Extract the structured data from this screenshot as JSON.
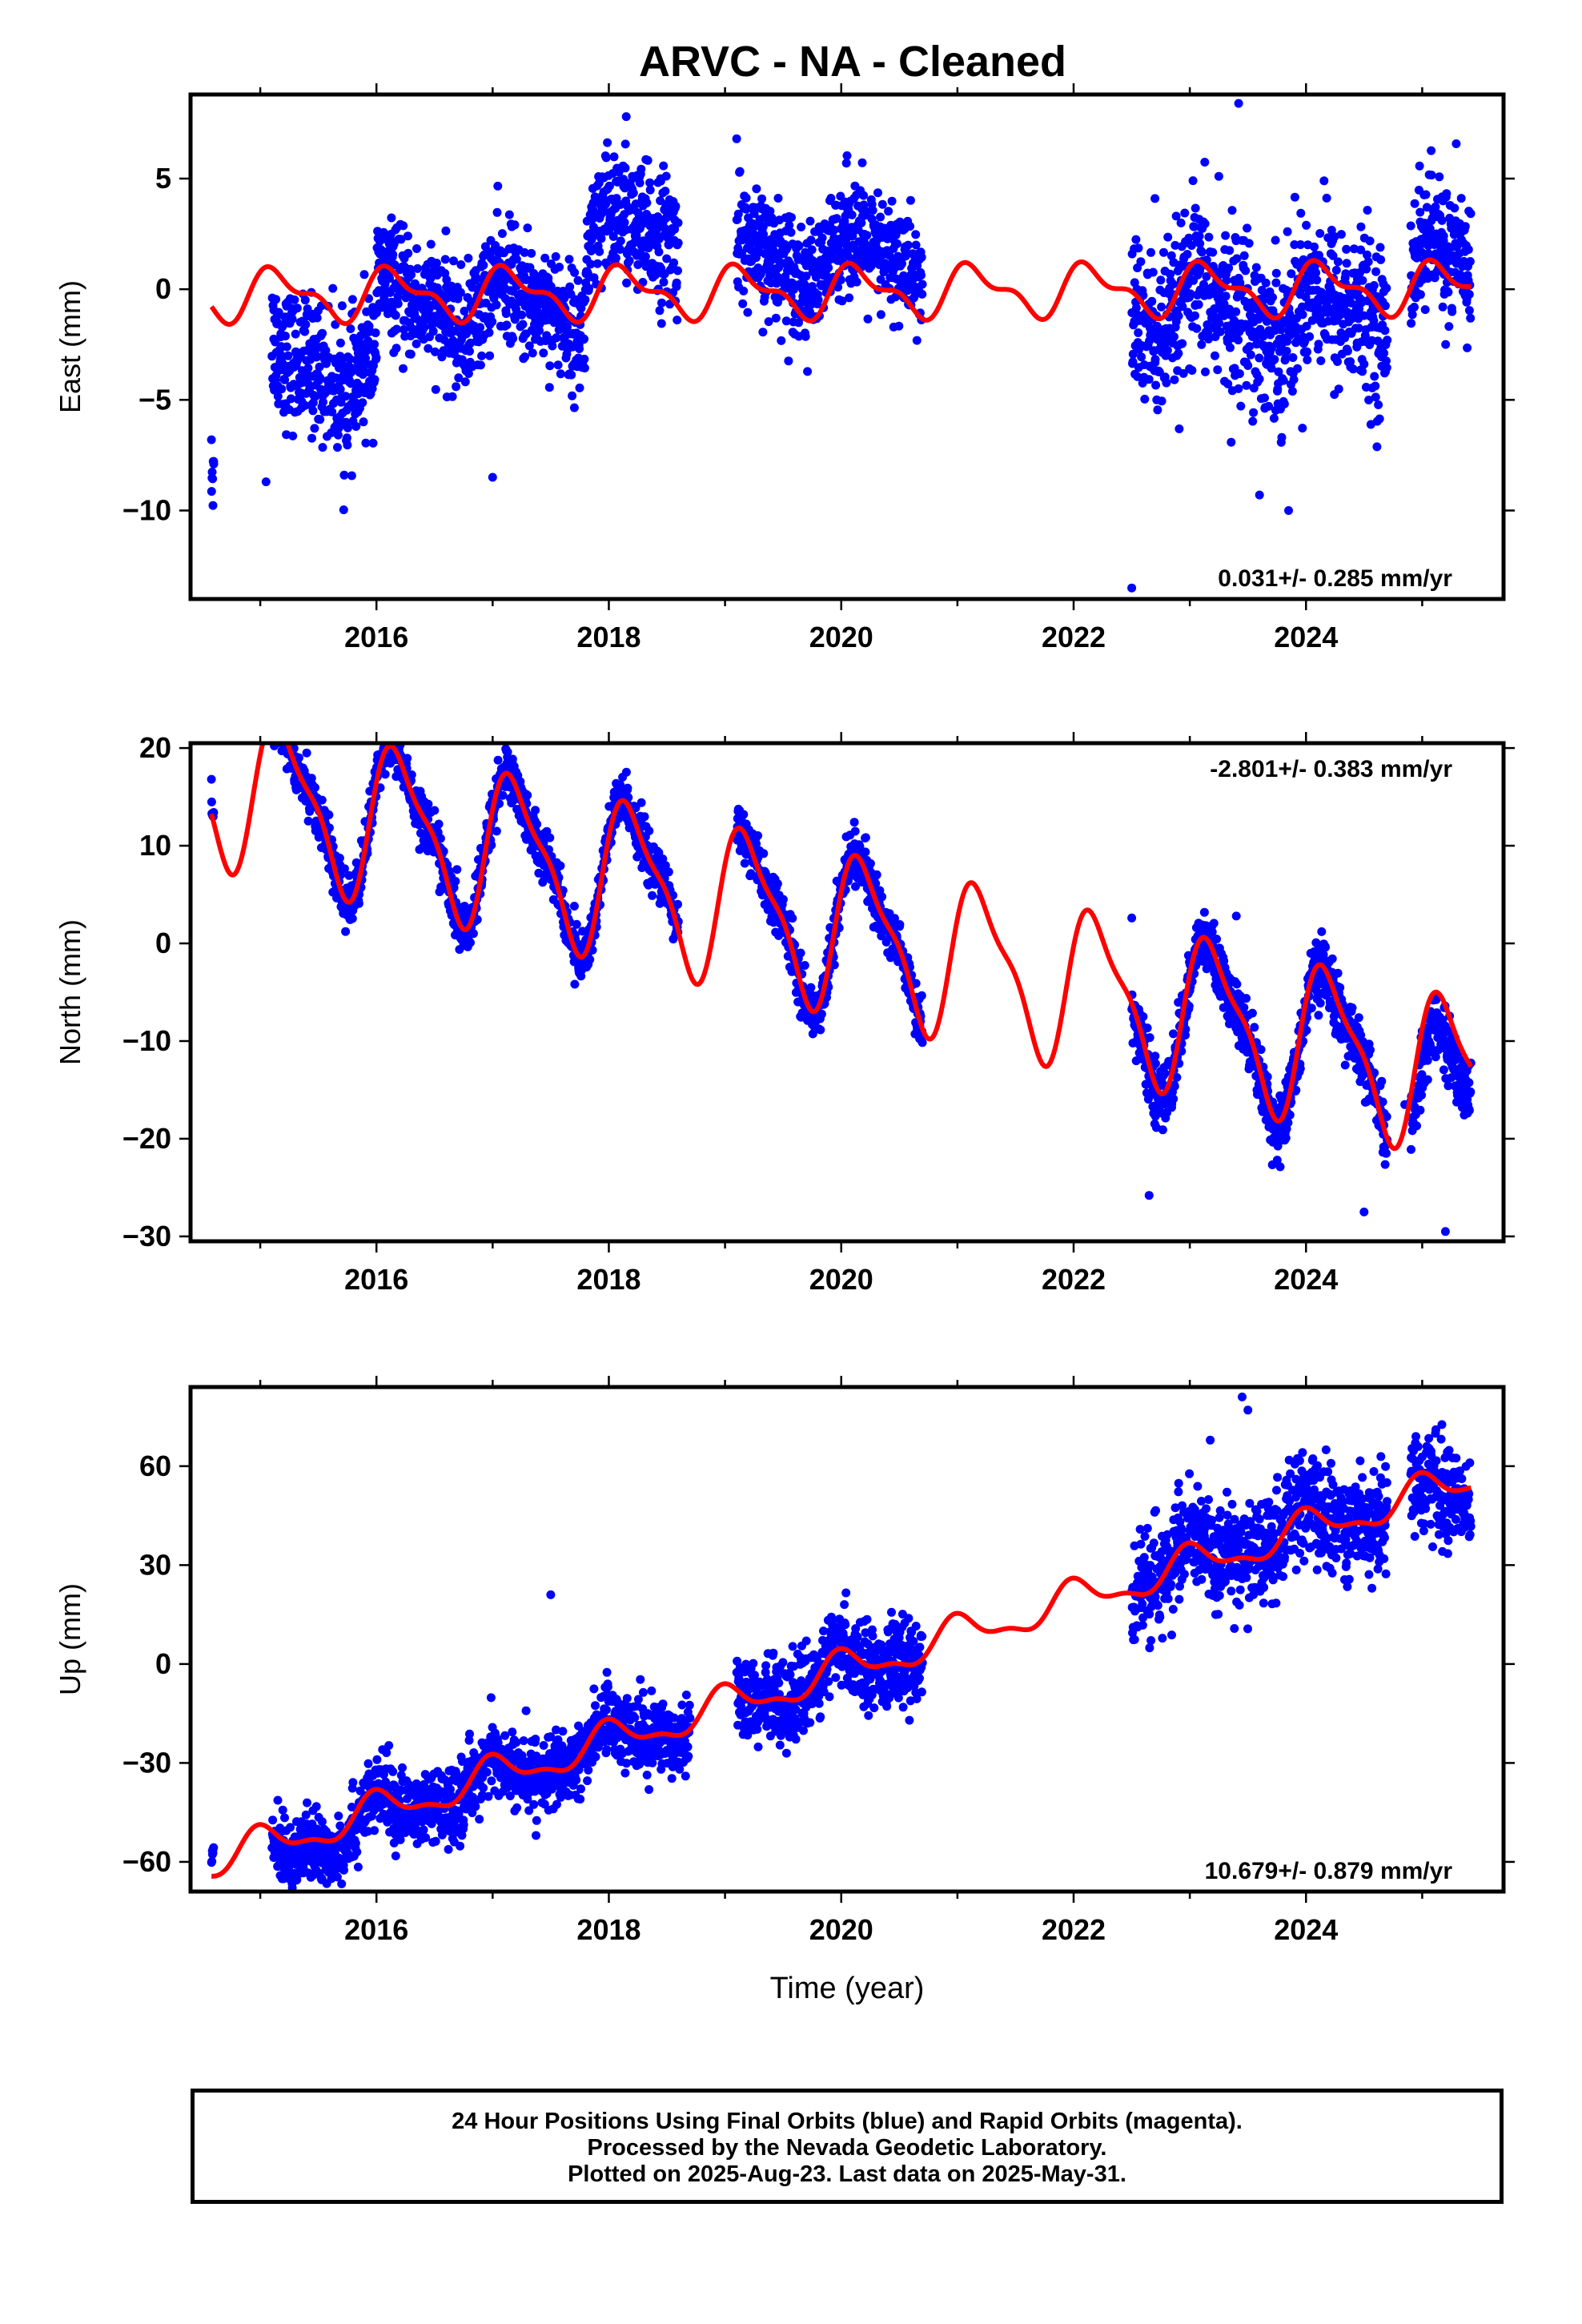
{
  "title": "ARVC  - NA - Cleaned",
  "xlabel": "Time (year)",
  "colors": {
    "data": "#0000ff",
    "model": "#ff0000",
    "axis": "#000000"
  },
  "caption": {
    "line1": "24 Hour Positions Using Final Orbits (blue) and Rapid Orbits (magenta).",
    "line2": "Processed by the Nevada Geodetic Laboratory.",
    "line3": "Plotted on 2025-Aug-23. Last data on 2025-May-31."
  },
  "chart_data": [
    {
      "type": "scatter",
      "name": "east",
      "ylabel": "East (mm)",
      "rate_label": "0.031+/- 0.285 mm/yr",
      "rate_position": "bottom-right",
      "xlim": [
        2014.4,
        2025.7
      ],
      "ylim": [
        -14,
        8.8
      ],
      "xticks": [
        2016,
        2018,
        2020,
        2022,
        2024
      ],
      "yticks": [
        -10,
        -5,
        0,
        5
      ],
      "grid": false,
      "model": {
        "offset": -0.1,
        "rate": 0.031,
        "amp_annual": 1.0,
        "phase_annual": 0.6,
        "amp_semi": 0.5,
        "phase_semi": 1.3
      },
      "data_segments": [
        {
          "start": 2014.58,
          "end": 2014.6,
          "scatter": 1.0,
          "bias": -7.3
        },
        {
          "start": 2015.1,
          "end": 2016.0,
          "scatter": 1.5,
          "bias": -3.2
        },
        {
          "start": 2016.0,
          "end": 2017.8,
          "scatter": 1.3,
          "bias": -0.5
        },
        {
          "start": 2017.8,
          "end": 2018.6,
          "scatter": 1.5,
          "bias": 2.5
        },
        {
          "start": 2019.1,
          "end": 2020.7,
          "scatter": 1.3,
          "bias": 1.5
        },
        {
          "start": 2022.5,
          "end": 2024.7,
          "scatter": 1.8,
          "bias": -1.0
        },
        {
          "start": 2024.9,
          "end": 2025.42,
          "scatter": 1.5,
          "bias": 1.0
        }
      ],
      "outliers": [
        [
          2014.58,
          -6.8
        ],
        [
          2014.6,
          -7.9
        ],
        [
          2015.05,
          -8.7
        ],
        [
          2017.0,
          -8.5
        ],
        [
          2018.15,
          7.8
        ],
        [
          2019.1,
          6.8
        ],
        [
          2022.5,
          -13.5
        ],
        [
          2023.42,
          8.4
        ],
        [
          2023.25,
          5.1
        ],
        [
          2023.6,
          -9.3
        ],
        [
          2023.85,
          -10.0
        ],
        [
          2022.7,
          4.1
        ]
      ]
    },
    {
      "type": "scatter",
      "name": "north",
      "ylabel": "North (mm)",
      "rate_label": "-2.801+/- 0.383 mm/yr",
      "rate_position": "top-right",
      "xlim": [
        2014.4,
        2025.7
      ],
      "ylim": [
        -30.5,
        20.5
      ],
      "xticks": [
        2016,
        2018,
        2020,
        2022,
        2024
      ],
      "yticks": [
        -30,
        -20,
        -10,
        0,
        10,
        20
      ],
      "grid": false,
      "model": {
        "offset": 1.3,
        "rate": -2.801,
        "amp_annual": 7.5,
        "phase_annual": 0.3,
        "amp_semi": 2.3,
        "phase_semi": 0.9
      },
      "data_segments": [
        {
          "start": 2014.58,
          "end": 2014.6,
          "scatter": 0.8,
          "bias": 0.5
        },
        {
          "start": 2015.1,
          "end": 2017.9,
          "scatter": 1.3,
          "bias": 0.0
        },
        {
          "start": 2017.9,
          "end": 2018.6,
          "scatter": 1.3,
          "bias": 0.0
        },
        {
          "start": 2019.1,
          "end": 2020.7,
          "scatter": 1.3,
          "bias": 0.0
        },
        {
          "start": 2022.5,
          "end": 2024.7,
          "scatter": 1.6,
          "bias": -0.5
        },
        {
          "start": 2024.9,
          "end": 2025.42,
          "scatter": 1.6,
          "bias": -3.5
        }
      ],
      "outliers": [
        [
          2014.58,
          16.8
        ],
        [
          2015.4,
          19.5
        ],
        [
          2022.5,
          2.6
        ],
        [
          2022.65,
          -25.8
        ],
        [
          2023.4,
          2.8
        ],
        [
          2024.5,
          -27.5
        ],
        [
          2024.85,
          -16.5
        ],
        [
          2025.2,
          -29.5
        ]
      ]
    },
    {
      "type": "scatter",
      "name": "up",
      "ylabel": "Up (mm)",
      "rate_label": "10.679+/- 0.879 mm/yr",
      "rate_position": "bottom-right",
      "xlim": [
        2014.4,
        2025.7
      ],
      "ylim": [
        -69,
        84
      ],
      "xticks": [
        2016,
        2018,
        2020,
        2022,
        2024
      ],
      "yticks": [
        -60,
        -30,
        0,
        30,
        60
      ],
      "grid": false,
      "model": {
        "offset": -2.0,
        "rate": 10.679,
        "amp_annual": 5.0,
        "phase_annual": 1.5,
        "amp_semi": 2.0,
        "phase_semi": 2.1
      },
      "data_segments": [
        {
          "start": 2014.58,
          "end": 2014.6,
          "scatter": 3.0,
          "bias": 6.0
        },
        {
          "start": 2015.1,
          "end": 2016.0,
          "scatter": 5.5,
          "bias": -3.0
        },
        {
          "start": 2016.0,
          "end": 2017.8,
          "scatter": 5.5,
          "bias": -1.0
        },
        {
          "start": 2017.8,
          "end": 2018.7,
          "scatter": 5.5,
          "bias": 0.0
        },
        {
          "start": 2019.1,
          "end": 2020.7,
          "scatter": 6.0,
          "bias": 0.0
        },
        {
          "start": 2022.5,
          "end": 2024.7,
          "scatter": 8.0,
          "bias": 1.0
        },
        {
          "start": 2024.9,
          "end": 2025.42,
          "scatter": 7.0,
          "bias": -2.0
        }
      ],
      "outliers": [
        [
          2017.5,
          21
        ],
        [
          2023.45,
          81
        ],
        [
          2023.5,
          77
        ],
        [
          2025.3,
          41
        ],
        [
          2015.2,
          -64
        ]
      ]
    }
  ]
}
